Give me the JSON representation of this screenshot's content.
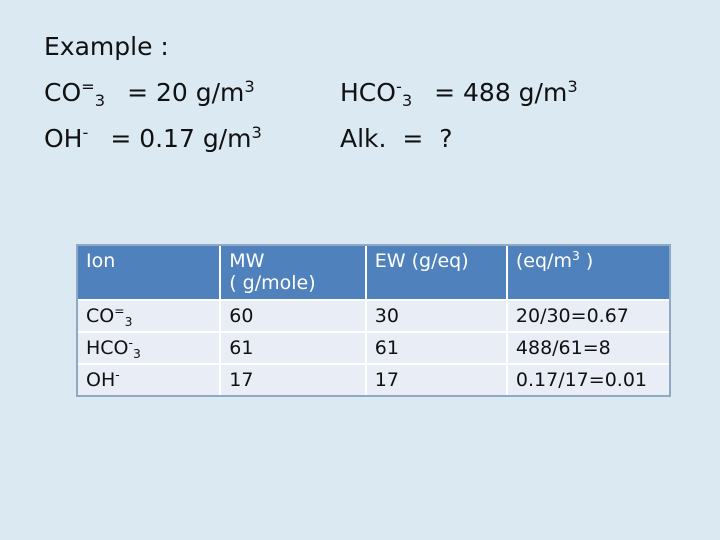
{
  "example": {
    "title": "Example :",
    "co3": {
      "base": "CO",
      "sup": "=",
      "sub": "3",
      "value": "= 20 g/m",
      "unit_exp": "3"
    },
    "hco3": {
      "base": "HCO",
      "sup": "-",
      "sub": "3",
      "value": "= 488 g/m",
      "unit_exp": "3"
    },
    "oh": {
      "base": "OH",
      "sup": "-",
      "value": "= 0.17 g/m",
      "unit_exp": "3"
    },
    "alk": {
      "text": "Alk.  =  ?"
    }
  },
  "table": {
    "headers": {
      "ion": "Ion",
      "mw": "MW",
      "mw2": "( g/mole)",
      "ew": "EW (g/eq)",
      "eq_pre": "(eq/m",
      "eq_sup": "3",
      "eq_post": " )"
    },
    "rows": [
      {
        "ion_base": "CO",
        "ion_sup": "=",
        "ion_sub": "3",
        "mw": "60",
        "ew": "30",
        "eq": "20/30=0.67"
      },
      {
        "ion_base": "HCO",
        "ion_sup": "-",
        "ion_sub": "3",
        "mw": "61",
        "ew": "61",
        "eq": "488/61=8"
      },
      {
        "ion_base": "OH",
        "ion_sup": "-",
        "ion_sub": "",
        "mw": "17",
        "ew": "17",
        "eq": "0.17/17=0.01"
      }
    ]
  }
}
